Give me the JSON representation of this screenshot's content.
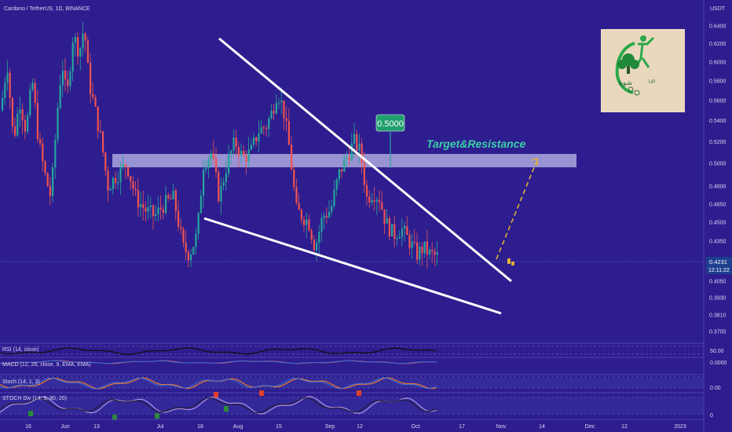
{
  "header": {
    "symbol_line": "Cardano / TetherUS, 1D, BINANCE",
    "currency": "USDT"
  },
  "price_label": {
    "price": "0.4231",
    "countdown": "12:11:22"
  },
  "annotations": {
    "target_text": "Target&Resistance",
    "target_badge": "0.5000"
  },
  "indicators": {
    "rsi": {
      "label": "RSI (14, close)",
      "levels": [
        "50.00"
      ]
    },
    "macd": {
      "label": "MACD (12, 26, close, 9, EMA, EMA)",
      "levels": [
        "0.0000"
      ]
    },
    "stoch": {
      "label": "Stoch (14, 1, 3)",
      "levels": [
        "0.00"
      ]
    },
    "stoch_div": {
      "label": "STOCH Div (14, 3, 80, 20)",
      "levels": [
        "0"
      ]
    }
  },
  "colors": {
    "background": "#2e1d8f",
    "up": "#26a69a",
    "down": "#ef5350",
    "trendline": "#ffffff",
    "zone": "#b9b8e6",
    "target_text": "#3ad0a8",
    "projection": "#e0b03a"
  },
  "chart_data": {
    "type": "candlestick",
    "y_scale": "log",
    "ylim": [
      0.374,
      0.65
    ],
    "y_ticks": [
      "0.6400",
      "0.6200",
      "0.6000",
      "0.5800",
      "0.5600",
      "0.5400",
      "0.5200",
      "0.5000",
      "0.4800",
      "0.4650",
      "0.4500",
      "0.4350",
      "0.4200",
      "0.4050",
      "0.3930",
      "0.3810",
      "0.3700"
    ],
    "x_tick_labels": [
      "16",
      "Jun",
      "13",
      "Jul",
      "18",
      "Aug",
      "15",
      "Sep",
      "12",
      "Oct",
      "17",
      "Nov",
      "14",
      "Dec",
      "12",
      "2023"
    ],
    "resistance_zone": [
      0.4995,
      0.5145
    ],
    "target": 0.5,
    "last_price": 0.4231,
    "wedge_upper_line": "descending resistance from ~0.62 (Aug) to ~0.41 (Oct)",
    "wedge_lower_line": "descending support from ~0.456 (Jul) to ~0.387 (Nov)"
  },
  "logo": {
    "text": ""
  }
}
